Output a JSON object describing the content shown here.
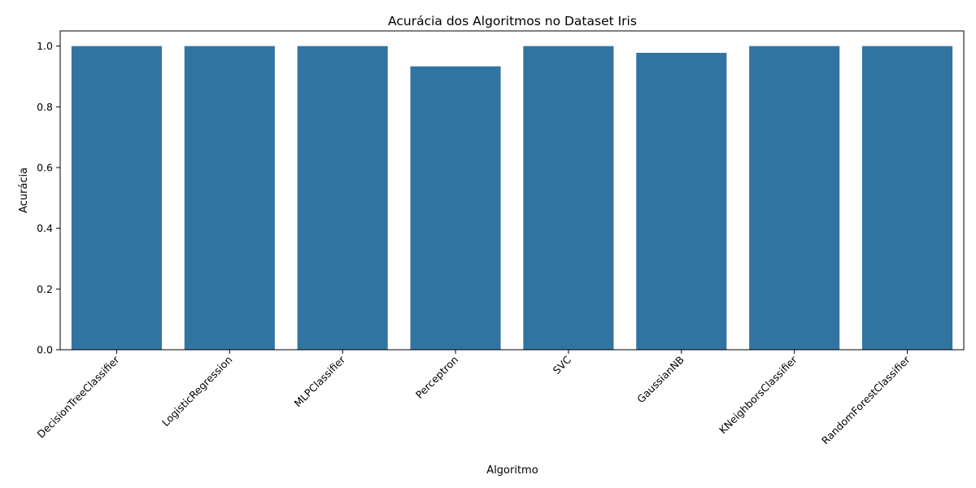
{
  "chart_data": {
    "type": "bar",
    "title": "Acurácia dos Algoritmos no Dataset Iris",
    "xlabel": "Algoritmo",
    "ylabel": "Acurácia",
    "categories": [
      "DecisionTreeClassifier",
      "LogisticRegression",
      "MLPClassifier",
      "Perceptron",
      "SVC",
      "GaussianNB",
      "KNeighborsClassifier",
      "RandomForestClassifier"
    ],
    "values": [
      1.0,
      1.0,
      1.0,
      0.9333,
      1.0,
      0.9778,
      1.0,
      1.0
    ],
    "ylim": [
      0,
      1.05
    ],
    "yticks": [
      0.0,
      0.2,
      0.4,
      0.6,
      0.8,
      1.0
    ],
    "ytick_labels": [
      "0.0",
      "0.2",
      "0.4",
      "0.6",
      "0.8",
      "1.0"
    ],
    "grid": false,
    "bar_color": "#3274a1"
  }
}
